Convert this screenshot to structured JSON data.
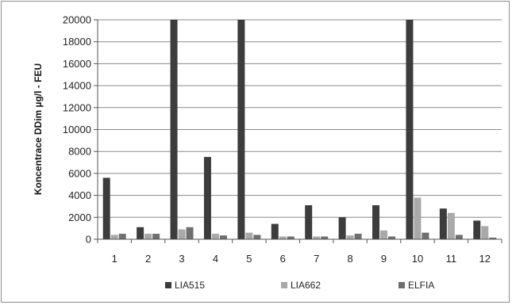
{
  "chart_data": {
    "type": "bar",
    "title": "",
    "xlabel": "",
    "ylabel": "Koncentrace DDim  µg/l - FEU",
    "categories": [
      "1",
      "2",
      "3",
      "4",
      "5",
      "6",
      "7",
      "8",
      "9",
      "10",
      "11",
      "12"
    ],
    "yticks": [
      "0",
      "2000",
      "4000",
      "6000",
      "8000",
      "10000",
      "12000",
      "14000",
      "16000",
      "18000",
      "20000"
    ],
    "ylim": [
      0,
      20000
    ],
    "grid": "horizontal",
    "legend_position": "bottom",
    "series": [
      {
        "name": "LIA515",
        "color": "#3c3c3c",
        "values": [
          5600,
          1100,
          20000,
          7500,
          20000,
          1400,
          3100,
          2000,
          3100,
          20000,
          2800,
          1700
        ]
      },
      {
        "name": "LIA662",
        "color": "#a9a9a9",
        "values": [
          400,
          500,
          900,
          500,
          600,
          250,
          250,
          350,
          800,
          3800,
          2400,
          1200
        ]
      },
      {
        "name": "ELFIA",
        "color": "#6f6f6f",
        "values": [
          500,
          500,
          1100,
          350,
          400,
          250,
          250,
          500,
          250,
          600,
          400,
          150
        ]
      }
    ]
  }
}
